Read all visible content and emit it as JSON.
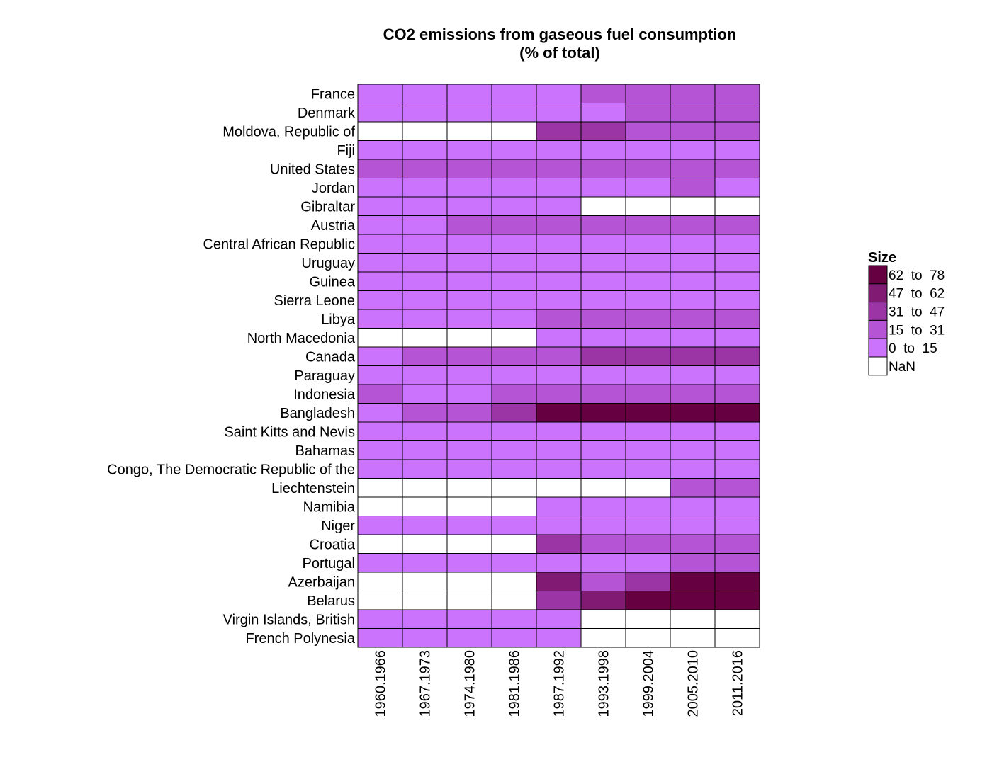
{
  "chart_data": {
    "type": "heatmap",
    "title_lines": [
      "CO2 emissions from gaseous fuel consumption",
      "(% of total)"
    ],
    "x_categories": [
      "1960.1966",
      "1967.1973",
      "1974.1980",
      "1981.1986",
      "1987.1992",
      "1993.1998",
      "1999.2004",
      "2005.2010",
      "2011.2016"
    ],
    "y_categories": [
      "France",
      "Denmark",
      "Moldova, Republic of",
      "Fiji",
      "United States",
      "Jordan",
      "Gibraltar",
      "Austria",
      "Central African Republic",
      "Uruguay",
      "Guinea",
      "Sierra Leone",
      "Libya",
      "North Macedonia",
      "Canada",
      "Paraguay",
      "Indonesia",
      "Bangladesh",
      "Saint Kitts and Nevis",
      "Bahamas",
      "Congo, The Democratic Republic of the",
      "Liechtenstein",
      "Namibia",
      "Niger",
      "Croatia",
      "Portugal",
      "Azerbaijan",
      "Belarus",
      "Virgin Islands, British",
      "French Polynesia"
    ],
    "bin_index_note": "values are legend bin indices: 0 = NaN, 1 = 0 to 15, 2 = 15 to 31, 3 = 31 to 47, 4 = 47 to 62, 5 = 62 to 78",
    "values": [
      [
        1,
        1,
        1,
        1,
        1,
        2,
        2,
        2,
        2
      ],
      [
        1,
        1,
        1,
        1,
        1,
        1,
        2,
        2,
        2
      ],
      [
        0,
        0,
        0,
        0,
        3,
        3,
        2,
        2,
        2
      ],
      [
        1,
        1,
        1,
        1,
        1,
        1,
        1,
        1,
        1
      ],
      [
        2,
        2,
        2,
        2,
        2,
        2,
        2,
        2,
        2
      ],
      [
        1,
        1,
        1,
        1,
        1,
        1,
        1,
        2,
        1
      ],
      [
        1,
        1,
        1,
        1,
        1,
        0,
        0,
        0,
        0
      ],
      [
        1,
        1,
        2,
        2,
        2,
        2,
        2,
        2,
        2
      ],
      [
        1,
        1,
        1,
        1,
        1,
        1,
        1,
        1,
        1
      ],
      [
        1,
        1,
        1,
        1,
        1,
        1,
        1,
        1,
        1
      ],
      [
        1,
        1,
        1,
        1,
        1,
        1,
        1,
        1,
        1
      ],
      [
        1,
        1,
        1,
        1,
        1,
        1,
        1,
        1,
        1
      ],
      [
        1,
        1,
        1,
        1,
        2,
        2,
        2,
        2,
        2
      ],
      [
        0,
        0,
        0,
        0,
        1,
        1,
        1,
        1,
        1
      ],
      [
        1,
        2,
        2,
        2,
        2,
        3,
        3,
        3,
        3
      ],
      [
        1,
        1,
        1,
        1,
        1,
        1,
        1,
        1,
        1
      ],
      [
        2,
        1,
        1,
        2,
        2,
        2,
        2,
        2,
        2
      ],
      [
        1,
        2,
        2,
        3,
        5,
        5,
        5,
        5,
        5
      ],
      [
        1,
        1,
        1,
        1,
        1,
        1,
        1,
        1,
        1
      ],
      [
        1,
        1,
        1,
        1,
        1,
        1,
        1,
        1,
        1
      ],
      [
        1,
        1,
        1,
        1,
        1,
        1,
        1,
        1,
        1
      ],
      [
        0,
        0,
        0,
        0,
        0,
        0,
        0,
        2,
        2
      ],
      [
        0,
        0,
        0,
        0,
        1,
        1,
        1,
        1,
        1
      ],
      [
        1,
        1,
        1,
        1,
        1,
        1,
        1,
        1,
        1
      ],
      [
        0,
        0,
        0,
        0,
        3,
        2,
        2,
        2,
        2
      ],
      [
        1,
        1,
        1,
        1,
        1,
        1,
        1,
        2,
        2
      ],
      [
        0,
        0,
        0,
        0,
        4,
        2,
        3,
        5,
        5
      ],
      [
        0,
        0,
        0,
        0,
        3,
        4,
        5,
        5,
        5
      ],
      [
        1,
        1,
        1,
        1,
        1,
        0,
        0,
        0,
        0
      ],
      [
        1,
        1,
        1,
        1,
        1,
        0,
        0,
        0,
        0
      ]
    ],
    "legend": {
      "title": "Size",
      "position": "right",
      "items": [
        {
          "label": "62  to  78",
          "color": "#660040"
        },
        {
          "label": "47  to  62",
          "color": "#801a73"
        },
        {
          "label": "31  to  47",
          "color": "#9b35a6"
        },
        {
          "label": "15  to  31",
          "color": "#b554d4"
        },
        {
          "label": "0  to  15",
          "color": "#cc73fe"
        },
        {
          "label": "NaN",
          "color": "#ffffff"
        }
      ]
    },
    "bin_colors": [
      "#ffffff",
      "#cc73fe",
      "#b554d4",
      "#9b35a6",
      "#801a73",
      "#660040"
    ],
    "grid": true
  }
}
